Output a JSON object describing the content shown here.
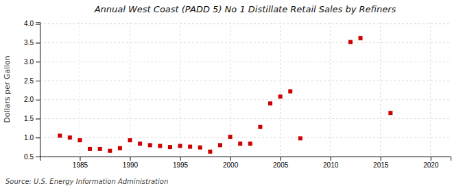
{
  "chart_data": {
    "type": "scatter",
    "title": "Annual West Coast (PADD 5) No 1 Distillate Retail Sales by Refiners",
    "ylabel": "Dollars per Gallon",
    "annotations": [
      "Source: U.S. Energy Information Administration"
    ],
    "x": [
      1983,
      1984,
      1985,
      1986,
      1987,
      1988,
      1989,
      1990,
      1991,
      1992,
      1993,
      1994,
      1995,
      1996,
      1997,
      1998,
      1999,
      2000,
      2001,
      2002,
      2003,
      2004,
      2005,
      2006,
      2007,
      2012,
      2013,
      2016
    ],
    "values": [
      1.05,
      1.0,
      0.93,
      0.7,
      0.7,
      0.65,
      0.72,
      0.93,
      0.84,
      0.8,
      0.78,
      0.75,
      0.78,
      0.76,
      0.74,
      0.63,
      0.8,
      1.02,
      0.84,
      0.84,
      1.28,
      1.9,
      2.08,
      2.22,
      0.98,
      3.52,
      3.62,
      1.65
    ],
    "color": "#cc0000",
    "marker": "square",
    "xlim": [
      1981,
      2022
    ],
    "xticks": [
      1985,
      1990,
      1995,
      2000,
      2005,
      2010,
      2015,
      2020
    ],
    "ylim": [
      0.5,
      4.05
    ],
    "yticks": [
      0.5,
      {
        "value": 1.0,
        "label": "1.0"
      },
      1.5,
      {
        "value": 2.0,
        "label": "2.0"
      },
      2.5,
      {
        "value": 3.0,
        "label": "3.0"
      },
      3.5,
      {
        "value": 4.0,
        "label": "4.0"
      }
    ],
    "grid": true
  }
}
